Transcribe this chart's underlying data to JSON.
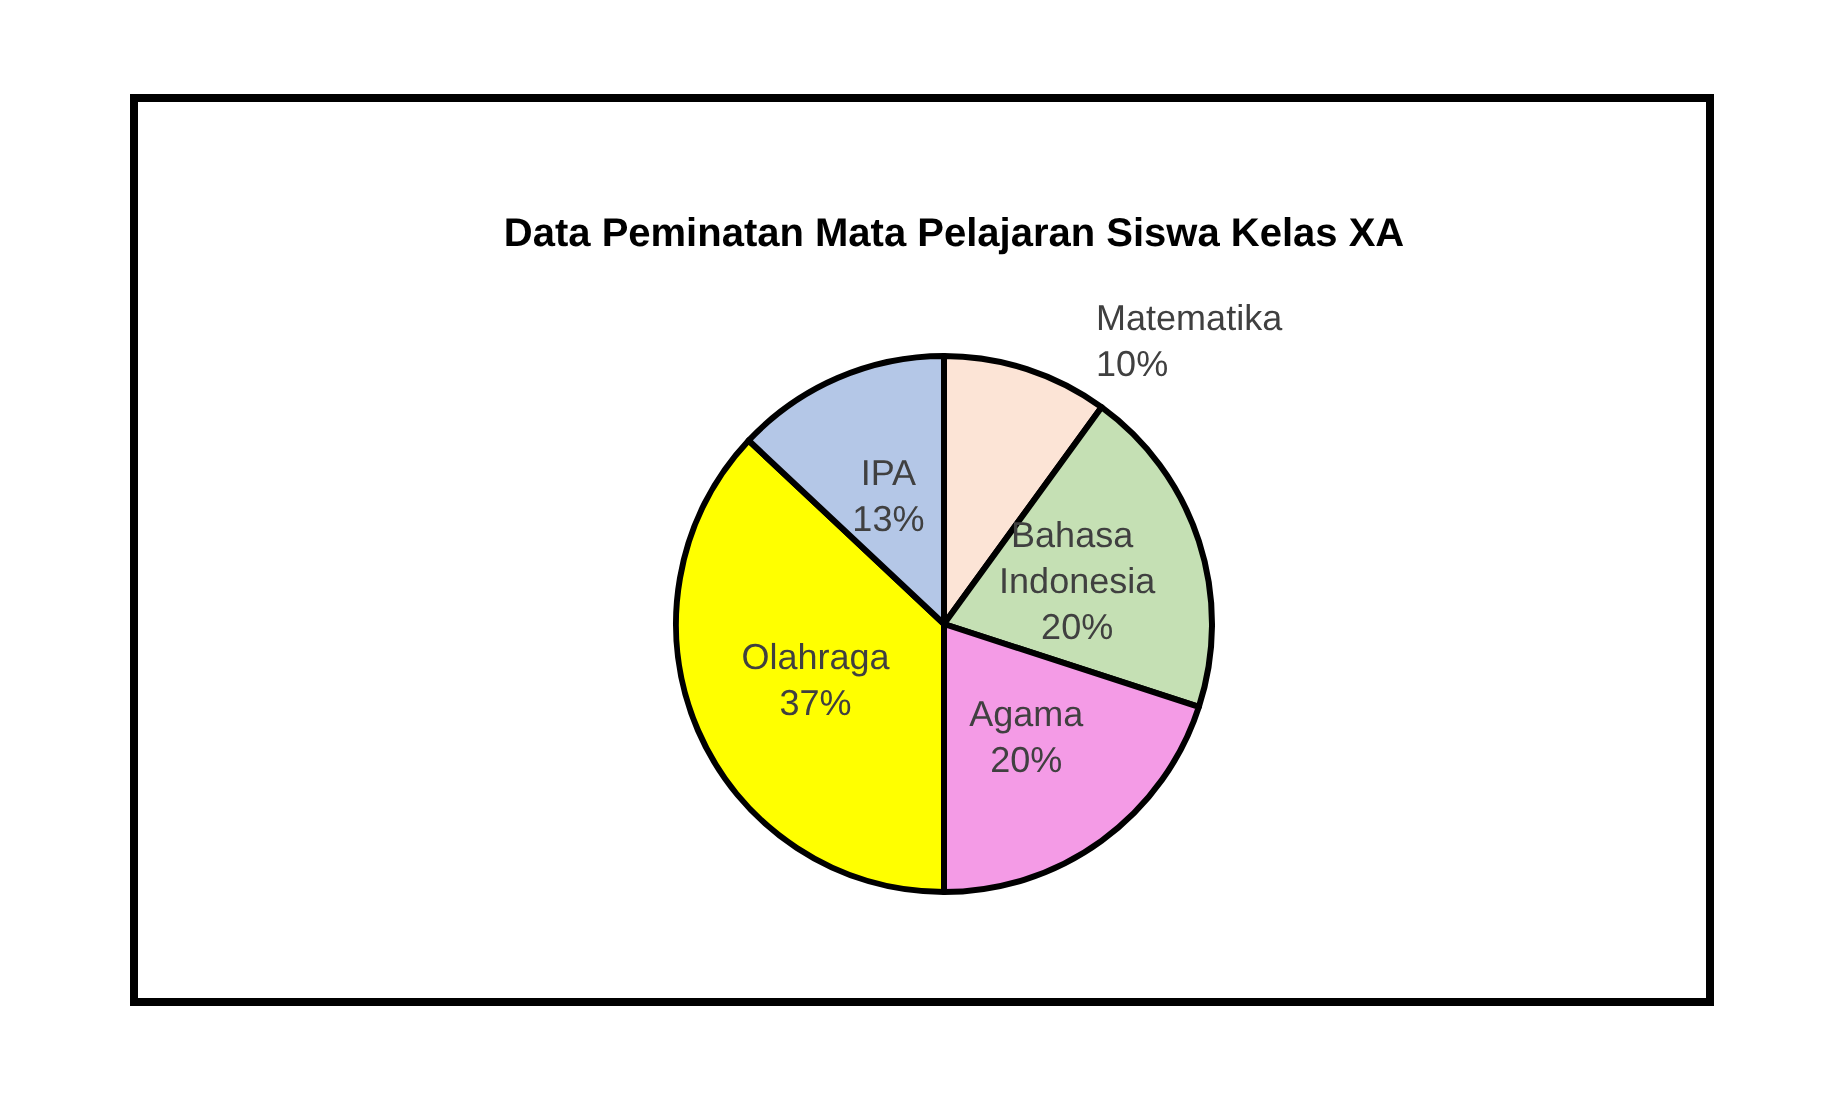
{
  "chart_data": {
    "type": "pie",
    "title": "Data Peminatan Mata Pelajaran Siswa Kelas XA",
    "categories": [
      "Matematika",
      "Bahasa Indonesia",
      "Agama",
      "Olahraga",
      "IPA"
    ],
    "values": [
      10,
      20,
      20,
      37,
      13
    ],
    "value_labels": [
      "10%",
      "20%",
      "20%",
      "37%",
      "13%"
    ],
    "colors": [
      "#fce4d6",
      "#c5e0b4",
      "#f49be6",
      "#ffff00",
      "#b4c7e7"
    ],
    "legend": false
  }
}
